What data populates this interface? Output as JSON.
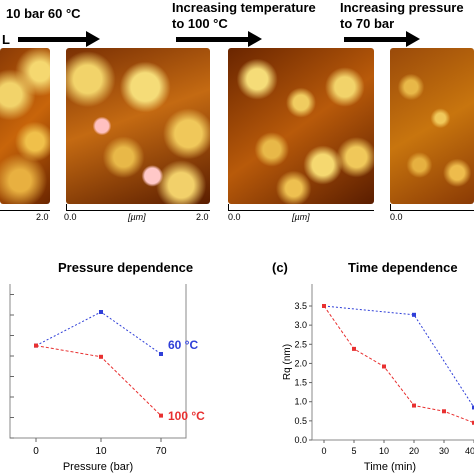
{
  "process": {
    "step1_letter": "L",
    "step1": "10 bar 60 °C",
    "step2_line1": "Increasing temperature",
    "step2_line2": "to 100 °C",
    "step3_line1": "Increasing pressure",
    "step3_line2": "to 70 bar"
  },
  "afm": {
    "tick_start": "0.0",
    "tick_end": "2.0",
    "unit": "[µm]"
  },
  "colors": {
    "afm_dark": "#5a1d00",
    "afm_mid": "#c8650a",
    "afm_light": "#f2d36a",
    "series_60": "#2f3fd8",
    "series_100": "#e83030"
  },
  "chart_data": [
    {
      "type": "line",
      "panel_label": "",
      "title": "Pressure dependence",
      "xlabel": "Pressure (bar)",
      "ylabel": "",
      "categories": [
        "0",
        "10",
        "70"
      ],
      "series": [
        {
          "name": "60 °C",
          "values": [
            3.3,
            4.5,
            3.0
          ]
        },
        {
          "name": "100 °C",
          "values": [
            3.3,
            2.9,
            0.8
          ]
        }
      ],
      "ylim": [
        0,
        5.5
      ]
    },
    {
      "type": "line",
      "panel_label": "(c)",
      "title": "Time dependence",
      "xlabel": "Time (min)",
      "ylabel": "Rq (nm)",
      "x_ticks": [
        "0",
        "5",
        "10",
        "20",
        "30",
        "40"
      ],
      "y_ticks": [
        "0.0",
        "0.5",
        "1.0",
        "1.5",
        "2.0",
        "2.5",
        "3.0",
        "3.5"
      ],
      "ylim": [
        0,
        3.8
      ],
      "series": [
        {
          "name": "",
          "x": [
            0,
            20,
            40
          ],
          "values": [
            3.5,
            3.27,
            0.85
          ]
        },
        {
          "name": "",
          "x": [
            0,
            5,
            10,
            20,
            30,
            40
          ],
          "values": [
            3.5,
            2.38,
            1.92,
            0.9,
            0.75,
            0.45
          ]
        }
      ]
    }
  ]
}
